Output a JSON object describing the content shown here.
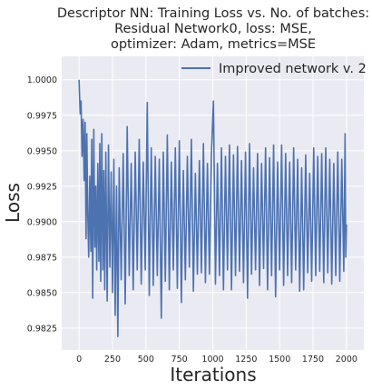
{
  "chart_data": {
    "type": "line",
    "title_lines": [
      "Descriptor NN: Training Loss vs. No. of batches:",
      "Residual Network0, loss: MSE,",
      "optimizer: Adam, metrics=MSE"
    ],
    "xlabel": "Iterations",
    "ylabel": "Loss",
    "xlim": [
      -130,
      2130
    ],
    "ylim": [
      0.98095,
      1.00165
    ],
    "x_ticks": [
      0,
      250,
      500,
      750,
      1000,
      1250,
      1500,
      1750,
      2000
    ],
    "y_ticks": [
      0.9825,
      0.985,
      0.9875,
      0.99,
      0.9925,
      0.995,
      0.9975,
      1.0
    ],
    "x_tick_labels": [
      "0",
      "250",
      "500",
      "750",
      "1000",
      "1250",
      "1500",
      "1750",
      "2000"
    ],
    "y_tick_labels": [
      "0.9825",
      "0.9850",
      "0.9875",
      "0.9900",
      "0.9925",
      "0.9950",
      "0.9975",
      "1.0000"
    ],
    "grid": true,
    "legend_position": "upper right",
    "series": [
      {
        "name": "Improved network v. 2",
        "color": "#4c72b0",
        "points": [
          [
            0,
            1.0
          ],
          [
            8,
            0.9976
          ],
          [
            15,
            0.9985
          ],
          [
            22,
            0.9946
          ],
          [
            30,
            0.9972
          ],
          [
            38,
            0.9929
          ],
          [
            45,
            0.997
          ],
          [
            52,
            0.9888
          ],
          [
            58,
            0.9962
          ],
          [
            65,
            0.9905
          ],
          [
            72,
            0.9875
          ],
          [
            80,
            0.9932
          ],
          [
            88,
            0.9879
          ],
          [
            95,
            0.9958
          ],
          [
            102,
            0.9846
          ],
          [
            110,
            0.9965
          ],
          [
            118,
            0.9882
          ],
          [
            125,
            0.9925
          ],
          [
            132,
            0.9866
          ],
          [
            140,
            0.9941
          ],
          [
            148,
            0.9872
          ],
          [
            155,
            0.9955
          ],
          [
            162,
            0.9858
          ],
          [
            170,
            0.9962
          ],
          [
            178,
            0.9866
          ],
          [
            185,
            0.9936
          ],
          [
            192,
            0.9852
          ],
          [
            200,
            0.9949
          ],
          [
            210,
            0.9844
          ],
          [
            220,
            0.9954
          ],
          [
            230,
            0.9868
          ],
          [
            240,
            0.9935
          ],
          [
            250,
            0.985
          ],
          [
            260,
            0.9944
          ],
          [
            270,
            0.9834
          ],
          [
            280,
            0.9925
          ],
          [
            290,
            0.9819
          ],
          [
            300,
            0.9938
          ],
          [
            315,
            0.9859
          ],
          [
            330,
            0.9948
          ],
          [
            345,
            0.9842
          ],
          [
            360,
            0.9967
          ],
          [
            375,
            0.9862
          ],
          [
            390,
            0.9941
          ],
          [
            405,
            0.9852
          ],
          [
            420,
            0.9949
          ],
          [
            435,
            0.9866
          ],
          [
            450,
            0.9958
          ],
          [
            465,
            0.9856
          ],
          [
            480,
            0.9942
          ],
          [
            495,
            0.9866
          ],
          [
            510,
            0.9984
          ],
          [
            525,
            0.9848
          ],
          [
            540,
            0.9952
          ],
          [
            555,
            0.9855
          ],
          [
            570,
            0.9946
          ],
          [
            585,
            0.9862
          ],
          [
            600,
            0.9944
          ],
          [
            615,
            0.9832
          ],
          [
            630,
            0.9949
          ],
          [
            645,
            0.9858
          ],
          [
            660,
            0.9961
          ],
          [
            675,
            0.9852
          ],
          [
            690,
            0.9942
          ],
          [
            705,
            0.9866
          ],
          [
            720,
            0.9952
          ],
          [
            735,
            0.9853
          ],
          [
            750,
            0.9957
          ],
          [
            765,
            0.9843
          ],
          [
            780,
            0.9936
          ],
          [
            795,
            0.9859
          ],
          [
            810,
            0.9946
          ],
          [
            825,
            0.9868
          ],
          [
            840,
            0.9958
          ],
          [
            855,
            0.9851
          ],
          [
            870,
            0.9934
          ],
          [
            885,
            0.9863
          ],
          [
            900,
            0.9943
          ],
          [
            915,
            0.9864
          ],
          [
            930,
            0.9955
          ],
          [
            945,
            0.9857
          ],
          [
            960,
            0.9941
          ],
          [
            975,
            0.9863
          ],
          [
            990,
            0.9948
          ],
          [
            1005,
            0.9985
          ],
          [
            1020,
            0.9856
          ],
          [
            1035,
            0.9941
          ],
          [
            1050,
            0.9862
          ],
          [
            1065,
            0.9952
          ],
          [
            1080,
            0.9852
          ],
          [
            1095,
            0.9946
          ],
          [
            1110,
            0.9866
          ],
          [
            1125,
            0.9954
          ],
          [
            1140,
            0.9852
          ],
          [
            1155,
            0.9947
          ],
          [
            1170,
            0.9862
          ],
          [
            1185,
            0.9953
          ],
          [
            1200,
            0.9865
          ],
          [
            1215,
            0.9943
          ],
          [
            1230,
            0.9857
          ],
          [
            1245,
            0.9949
          ],
          [
            1260,
            0.9846
          ],
          [
            1275,
            0.9955
          ],
          [
            1290,
            0.9863
          ],
          [
            1305,
            0.9938
          ],
          [
            1320,
            0.9866
          ],
          [
            1335,
            0.9948
          ],
          [
            1350,
            0.9855
          ],
          [
            1365,
            0.9941
          ],
          [
            1380,
            0.9867
          ],
          [
            1395,
            0.9952
          ],
          [
            1410,
            0.9852
          ],
          [
            1425,
            0.9945
          ],
          [
            1440,
            0.9862
          ],
          [
            1455,
            0.9954
          ],
          [
            1470,
            0.9847
          ],
          [
            1485,
            0.9942
          ],
          [
            1500,
            0.9866
          ],
          [
            1515,
            0.9954
          ],
          [
            1530,
            0.9855
          ],
          [
            1545,
            0.9948
          ],
          [
            1560,
            0.9862
          ],
          [
            1575,
            0.9942
          ],
          [
            1590,
            0.9857
          ],
          [
            1605,
            0.9952
          ],
          [
            1620,
            0.9866
          ],
          [
            1635,
            0.9944
          ],
          [
            1650,
            0.9851
          ],
          [
            1665,
            0.9938
          ],
          [
            1680,
            0.9852
          ],
          [
            1695,
            0.9947
          ],
          [
            1710,
            0.9864
          ],
          [
            1725,
            0.9934
          ],
          [
            1740,
            0.9858
          ],
          [
            1755,
            0.9952
          ],
          [
            1770,
            0.9862
          ],
          [
            1785,
            0.9946
          ],
          [
            1800,
            0.9865
          ],
          [
            1815,
            0.9948
          ],
          [
            1830,
            0.9857
          ],
          [
            1845,
            0.9952
          ],
          [
            1860,
            0.9864
          ],
          [
            1875,
            0.9944
          ],
          [
            1890,
            0.9856
          ],
          [
            1905,
            0.9941
          ],
          [
            1920,
            0.9862
          ],
          [
            1935,
            0.9949
          ],
          [
            1950,
            0.9858
          ],
          [
            1965,
            0.9944
          ],
          [
            1980,
            0.9865
          ],
          [
            1990,
            0.9962
          ],
          [
            1995,
            0.9875
          ],
          [
            2000,
            0.9898
          ]
        ]
      }
    ]
  }
}
